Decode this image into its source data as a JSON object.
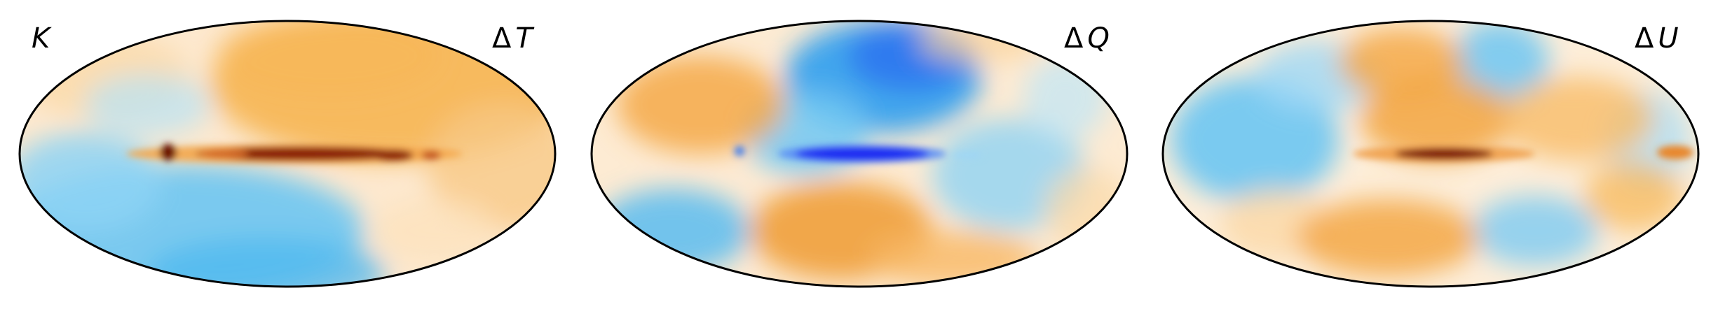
{
  "figure": {
    "panels": [
      {
        "id": "k-band",
        "corner_label": "K",
        "title_symbol": "Δ",
        "title_var": "T",
        "palette": {
          "positive_strong": "#7a0a00",
          "positive": "#f3a21c",
          "neutral": "#fff6ea",
          "negative": "#2aa9f0",
          "negative_strong": "#1f2bf2"
        }
      },
      {
        "id": "delta-q",
        "corner_label": "",
        "title_symbol": "Δ",
        "title_var": "Q",
        "palette": {
          "positive_strong": "#7a0a00",
          "positive": "#f3a21c",
          "neutral": "#fff6ea",
          "negative": "#2aa9f0",
          "negative_strong": "#1f2bf2"
        }
      },
      {
        "id": "delta-u",
        "corner_label": "",
        "title_symbol": "Δ",
        "title_var": "U",
        "palette": {
          "positive_strong": "#7a0a00",
          "positive": "#f3a21c",
          "neutral": "#fff6ea",
          "negative": "#2aa9f0",
          "negative_strong": "#1f2bf2"
        }
      }
    ]
  }
}
